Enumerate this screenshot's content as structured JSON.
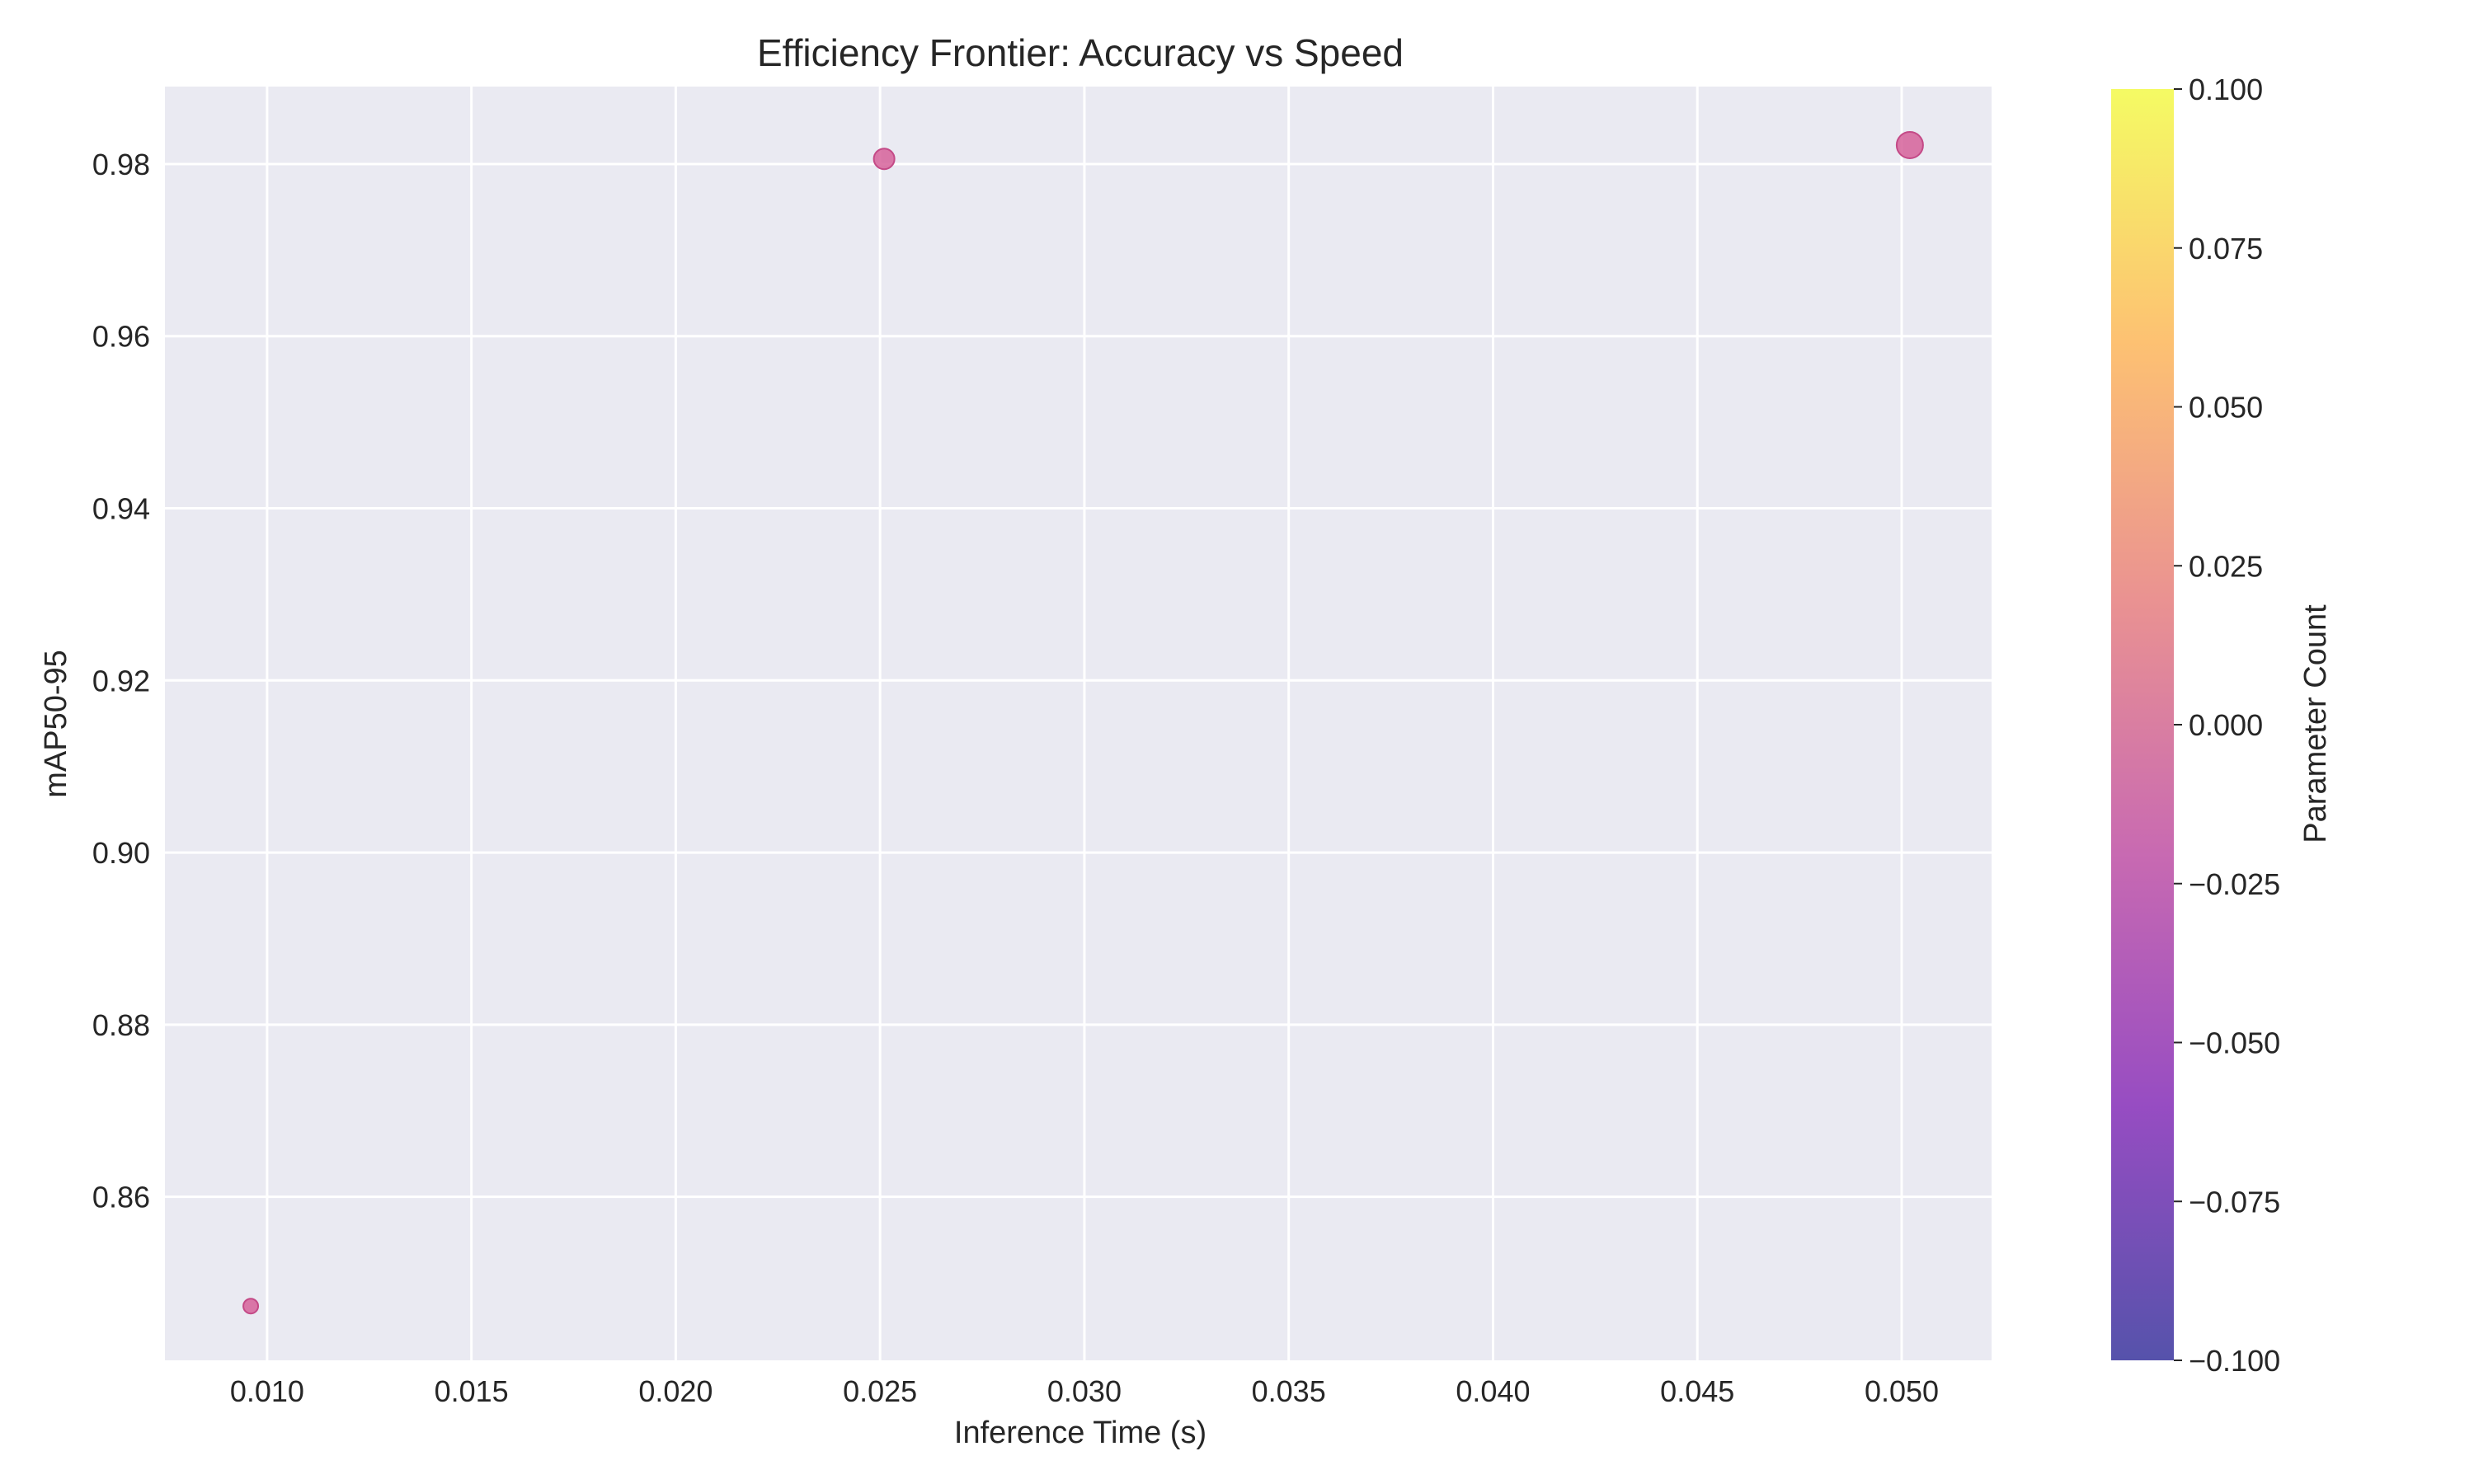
{
  "chart_data": {
    "type": "scatter",
    "title": "Efficiency Frontier: Accuracy vs Speed",
    "xlabel": "Inference Time (s)",
    "ylabel": "mAP50-95",
    "xlim": [
      0.0075,
      0.0522
    ],
    "ylim": [
      0.841,
      0.989
    ],
    "xticks": [
      0.01,
      0.015,
      0.02,
      0.025,
      0.03,
      0.035,
      0.04,
      0.045,
      0.05
    ],
    "xtick_labels": [
      "0.010",
      "0.015",
      "0.020",
      "0.025",
      "0.030",
      "0.035",
      "0.040",
      "0.045",
      "0.050"
    ],
    "yticks": [
      0.86,
      0.88,
      0.9,
      0.92,
      0.94,
      0.96,
      0.98
    ],
    "ytick_labels": [
      "0.86",
      "0.88",
      "0.90",
      "0.92",
      "0.94",
      "0.96",
      "0.98"
    ],
    "grid": true,
    "points": [
      {
        "x": 0.0096,
        "y": 0.8473,
        "size": 1
      },
      {
        "x": 0.0251,
        "y": 0.9806,
        "size": 2
      },
      {
        "x": 0.0502,
        "y": 0.9822,
        "size": 3
      }
    ],
    "point_color": "#d6619a",
    "point_edge_color": "#c44a87",
    "plot_background": "#eaeaf2",
    "grid_color": "#ffffff",
    "colorbar": {
      "label": "Parameter Count",
      "range": [
        -0.1,
        0.1
      ],
      "ticks": [
        0.1,
        0.075,
        0.05,
        0.025,
        0.0,
        -0.025,
        -0.05,
        -0.075,
        -0.1
      ],
      "tick_labels": [
        "0.100",
        "0.075",
        "0.050",
        "0.025",
        "0.000",
        "−0.025",
        "−0.050",
        "−0.075",
        "−0.100"
      ],
      "colormap": "plasma",
      "gradient_stops": [
        "#0d0887",
        "#6a00a8",
        "#b12a90",
        "#e16462",
        "#fca636",
        "#f0f921"
      ],
      "alpha": 0.7
    }
  }
}
